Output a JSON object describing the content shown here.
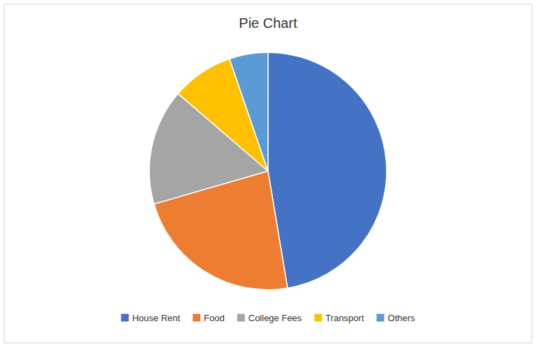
{
  "chart_data": {
    "type": "pie",
    "title": "Pie Chart",
    "categories": [
      "House Rent",
      "Food",
      "College Fees",
      "Transport",
      "Others"
    ],
    "values": [
      45,
      22,
      15,
      8,
      5
    ],
    "colors": [
      "#4472C4",
      "#ED7D31",
      "#A5A5A5",
      "#FFC000",
      "#5B9BD5"
    ],
    "legend": "bottom"
  }
}
